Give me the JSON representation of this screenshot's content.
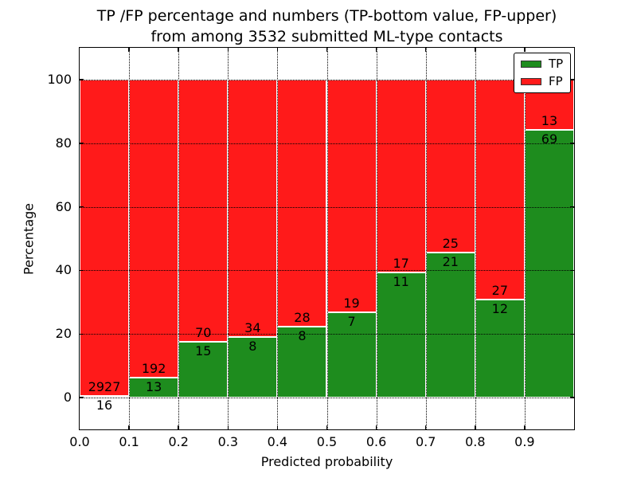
{
  "header": {
    "title_line1": "TP /FP percentage and numbers (TP-bottom value, FP-upper)",
    "title_line2": "from among 3532 submitted ML-type contacts"
  },
  "chart_data": {
    "type": "bar",
    "stacked": true,
    "title": "TP /FP percentage and numbers (TP-bottom value, FP-upper)\nfrom among 3532 submitted ML-type contacts",
    "xlabel": "Predicted probability",
    "ylabel": "Percentage",
    "total_contacts": 3532,
    "xlim": [
      0.0,
      1.0
    ],
    "ylim": [
      -10,
      110
    ],
    "bin_width": 0.1,
    "xtick_labels": [
      "0.0",
      "0.1",
      "0.2",
      "0.3",
      "0.4",
      "0.5",
      "0.6",
      "0.7",
      "0.8",
      "0.9"
    ],
    "yticks": [
      0,
      20,
      40,
      60,
      80,
      100
    ],
    "grid": "dotted",
    "legend_position": "upper right",
    "series": [
      {
        "name": "TP",
        "color": "#1e8c1e",
        "counts": [
          16,
          13,
          15,
          8,
          8,
          7,
          11,
          21,
          12,
          69
        ],
        "pct": [
          0.54,
          6.34,
          17.65,
          19.05,
          22.22,
          26.92,
          39.29,
          45.65,
          30.77,
          84.15
        ]
      },
      {
        "name": "FP",
        "color": "#ff1a1a",
        "counts": [
          2927,
          192,
          70,
          34,
          28,
          19,
          17,
          25,
          27,
          13
        ],
        "pct": [
          99.46,
          93.66,
          82.35,
          80.95,
          77.78,
          73.08,
          60.71,
          54.35,
          69.23,
          15.85
        ]
      }
    ]
  }
}
